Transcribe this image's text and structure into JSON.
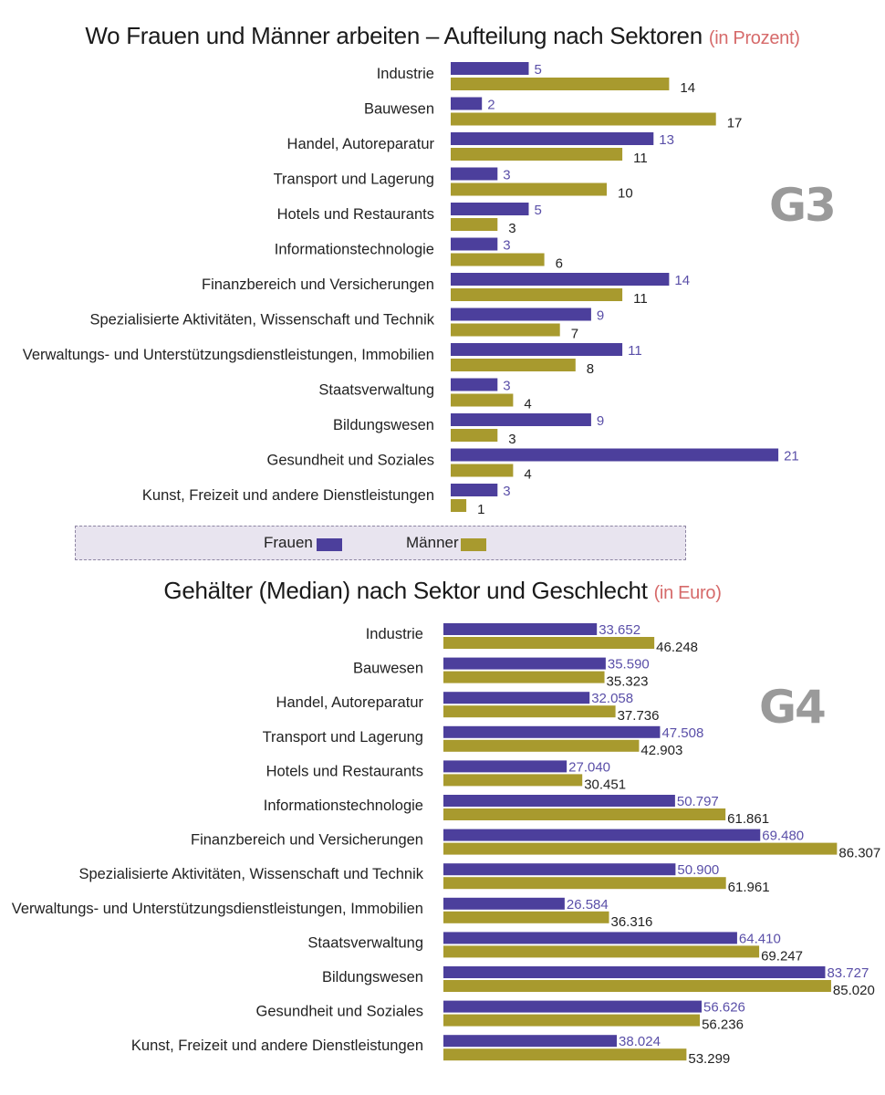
{
  "colors": {
    "frauen": "#4c3f9c",
    "maenner": "#a89a2e",
    "frauen_text": "#5a4fa8",
    "badge": "#9a9a9a",
    "title_unit": "#d66a6a"
  },
  "chart_data": [
    {
      "id": "G3",
      "type": "bar",
      "orientation": "horizontal",
      "title": "Wo Frauen und Männer arbeiten – Aufteilung nach Sektoren",
      "title_unit": "(in Prozent)",
      "badge": "G3",
      "categories": [
        "Industrie",
        "Bauwesen",
        "Handel, Autoreparatur",
        "Transport und Lagerung",
        "Hotels und Restaurants",
        "Informationstechnologie",
        "Finanzbereich und Versicherungen",
        "Spezialisierte Aktivitäten, Wissenschaft und Technik",
        "Verwaltungs- und Unterstützungsdienstleistungen, Immobilien",
        "Staatsverwaltung",
        "Bildungswesen",
        "Gesundheit und Soziales",
        "Kunst, Freizeit und andere Dienstleistungen"
      ],
      "series": [
        {
          "name": "Frauen",
          "values": [
            5,
            2,
            13,
            3,
            5,
            3,
            14,
            9,
            11,
            3,
            9,
            21,
            3
          ],
          "labels": [
            "5",
            "2",
            "13",
            "3",
            "5",
            "3",
            "14",
            "9",
            "11",
            "3",
            "9",
            "21",
            "3"
          ]
        },
        {
          "name": "Männer",
          "values": [
            14,
            17,
            11,
            10,
            3,
            6,
            11,
            7,
            8,
            4,
            3,
            4,
            1
          ],
          "labels": [
            "14",
            "17",
            "11",
            "10",
            "3",
            "6",
            "11",
            "7",
            "8",
            "4",
            "3",
            "4",
            "1"
          ]
        }
      ],
      "xlim": [
        0,
        25
      ]
    },
    {
      "id": "G4",
      "type": "bar",
      "orientation": "horizontal",
      "title": "Gehälter (Median) nach Sektor und Geschlecht",
      "title_unit": "(in Euro)",
      "badge": "G4",
      "categories": [
        "Industrie",
        "Bauwesen",
        "Handel, Autoreparatur",
        "Transport und Lagerung",
        "Hotels und Restaurants",
        "Informationstechnologie",
        "Finanzbereich und Versicherungen",
        "Spezialisierte Aktivitäten, Wissenschaft und Technik",
        "Verwaltungs- und Unterstützungsdienstleistungen, Immobilien",
        "Staatsverwaltung",
        "Bildungswesen",
        "Gesundheit und Soziales",
        "Kunst, Freizeit und andere Dienstleistungen"
      ],
      "series": [
        {
          "name": "Frauen",
          "values": [
            33652,
            35590,
            32058,
            47508,
            27040,
            50797,
            69480,
            50900,
            26584,
            64410,
            83727,
            56626,
            38024
          ],
          "labels": [
            "33.652",
            "35.590",
            "32.058",
            "47.508",
            "27.040",
            "50.797",
            "69.480",
            "50.900",
            "26.584",
            "64.410",
            "83.727",
            "56.626",
            "38.024"
          ]
        },
        {
          "name": "Männer",
          "values": [
            46248,
            35323,
            37736,
            42903,
            30451,
            61861,
            86307,
            61961,
            36316,
            69247,
            85020,
            56236,
            53299
          ],
          "labels": [
            "46.248",
            "35.323",
            "37.736",
            "42.903",
            "30.451",
            "61.861",
            "86.307",
            "61.961",
            "36.316",
            "69.247",
            "85.020",
            "56.236",
            "53.299"
          ]
        }
      ],
      "xlim": [
        0,
        90000
      ]
    }
  ],
  "legend": {
    "frauen": "Frauen",
    "maenner": "Männer"
  }
}
